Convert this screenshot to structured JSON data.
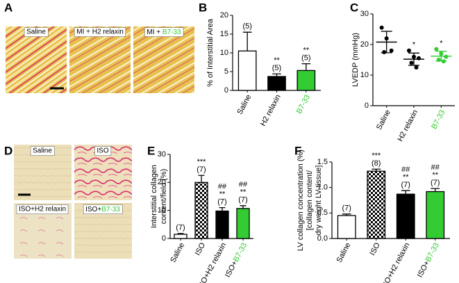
{
  "panel_letters": [
    "A",
    "B",
    "C",
    "D",
    "E",
    "F"
  ],
  "micrographs_a": [
    "Saline",
    "MI + H2 relaxin",
    "MI + B7-33"
  ],
  "micrographs_d": [
    "Saline",
    "ISO",
    "ISO+H2 relaxin",
    "ISO+B7-33"
  ],
  "highlight": {
    "text": "B7-33",
    "color": "#33cc33"
  },
  "chart_data": [
    {
      "type": "bar",
      "ylabel": [
        "% of Interstitial Area"
      ],
      "categories": [
        "Saline",
        "H2 relaxin",
        "B7-33"
      ],
      "values": [
        10.5,
        3.7,
        5.3
      ],
      "errors": [
        5,
        0.7,
        1.8
      ],
      "colors": [
        "#ffffff",
        "#000000",
        "#33cc33"
      ],
      "patterns": [
        "none",
        "none",
        "none"
      ],
      "annotations": [
        [
          "(5)"
        ],
        [
          "**",
          "(5)"
        ],
        [
          "**",
          "(5)"
        ]
      ],
      "ylim": [
        0,
        20
      ],
      "yticks": [
        0,
        5,
        10,
        15,
        20
      ]
    },
    {
      "type": "dot",
      "ylabel": [
        "LVEDP (mmHg)"
      ],
      "categories": [
        "Saline",
        "H2 relaxin",
        "B7-33"
      ],
      "points": [
        [
          25.5,
          22,
          18,
          17.5
        ],
        [
          18,
          16,
          15.5,
          14,
          12.5
        ],
        [
          18.5,
          17,
          16,
          15,
          14.5
        ]
      ],
      "means": [
        20.8,
        15.2,
        16.2
      ],
      "errors": [
        3.5,
        2,
        1.6
      ],
      "colors": [
        "#000000",
        "#000000",
        "#33cc33"
      ],
      "annotations": [
        [],
        [
          "*"
        ],
        [
          "*"
        ]
      ],
      "ylim": [
        0,
        30
      ],
      "yticks": [
        0,
        10,
        20,
        30
      ]
    },
    {
      "type": "bar",
      "ylabel": [
        "Interstitial collagen",
        "content/field (%)"
      ],
      "categories": [
        "Saline",
        "ISO",
        "ISO+H2 relaxin",
        "ISO+B7-33"
      ],
      "values": [
        1.5,
        20,
        9.8,
        10.7
      ],
      "errors": [
        0.3,
        2.5,
        1.2,
        1
      ],
      "colors": [
        "#ffffff",
        "#ffffff",
        "#000000",
        "#33cc33"
      ],
      "patterns": [
        "none",
        "checker",
        "none",
        "none"
      ],
      "annotations": [
        [
          "(7)"
        ],
        [
          "***",
          "(7)"
        ],
        [
          "##",
          "**",
          "(7)"
        ],
        [
          "##",
          "**",
          "(7)"
        ]
      ],
      "ylim": [
        0,
        30
      ],
      "yticks": [
        0,
        10,
        20,
        30
      ]
    },
    {
      "type": "bar",
      "ylabel": [
        "LV collagen concentration (%)",
        "[collagen content/",
        "dry weight LV tissue]"
      ],
      "categories": [
        "Saline",
        "ISO",
        "ISO+H2 relaxin",
        "ISO+B7-33"
      ],
      "values": [
        0.45,
        1.32,
        0.87,
        0.92
      ],
      "errors": [
        0.03,
        0.04,
        0.07,
        0.06
      ],
      "colors": [
        "#ffffff",
        "#ffffff",
        "#000000",
        "#33cc33"
      ],
      "patterns": [
        "none",
        "checker",
        "none",
        "none"
      ],
      "annotations": [
        [
          "(7)"
        ],
        [
          "***",
          "(8)"
        ],
        [
          "##",
          "**",
          "(7)"
        ],
        [
          "##",
          "**",
          "(7)"
        ]
      ],
      "ylim": [
        0,
        1.5
      ],
      "yticks": [
        {
          "value": 0,
          "label": "0.0"
        },
        {
          "value": 0.5,
          "label": "0.5"
        },
        {
          "value": 1,
          "label": "1.0"
        },
        {
          "value": 1.5,
          "label": "1.5"
        }
      ]
    }
  ]
}
